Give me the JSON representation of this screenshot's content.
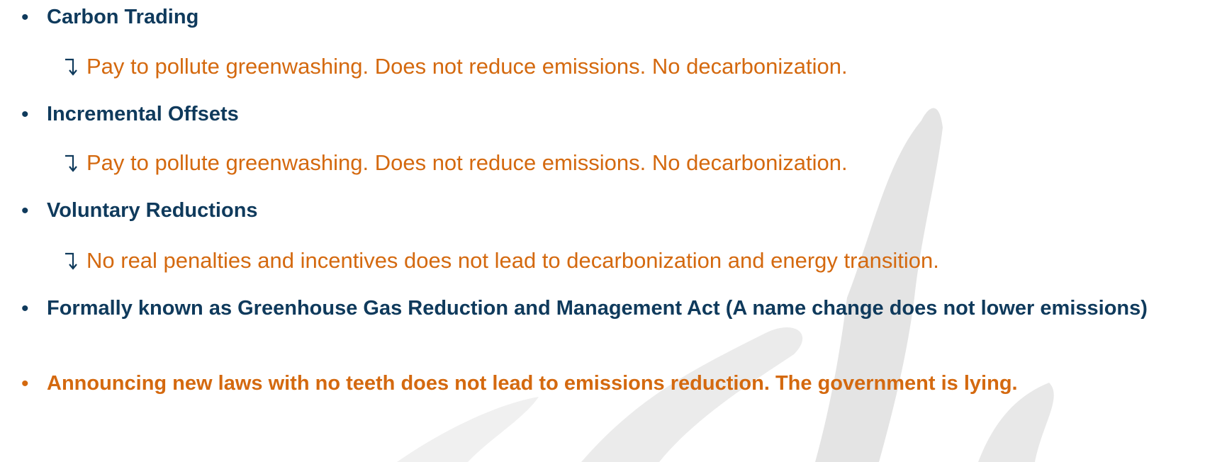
{
  "items": [
    {
      "text": "Carbon Trading",
      "sub": "Pay to pollute greenwashing. Does not reduce emissions. No decarbonization."
    },
    {
      "text": "Incremental Offsets",
      "sub": "Pay to pollute greenwashing. Does not reduce emissions. No decarbonization."
    },
    {
      "text": "Voluntary Reductions",
      "sub": "No real penalties and incentives does not lead to decarbonization and energy transition."
    },
    {
      "text": "Formally known as Greenhouse Gas Reduction and Management Act (A name change does not lower emissions)"
    },
    {
      "text": "Announcing new laws with no teeth does not lead to emissions reduction. The government is lying."
    }
  ]
}
